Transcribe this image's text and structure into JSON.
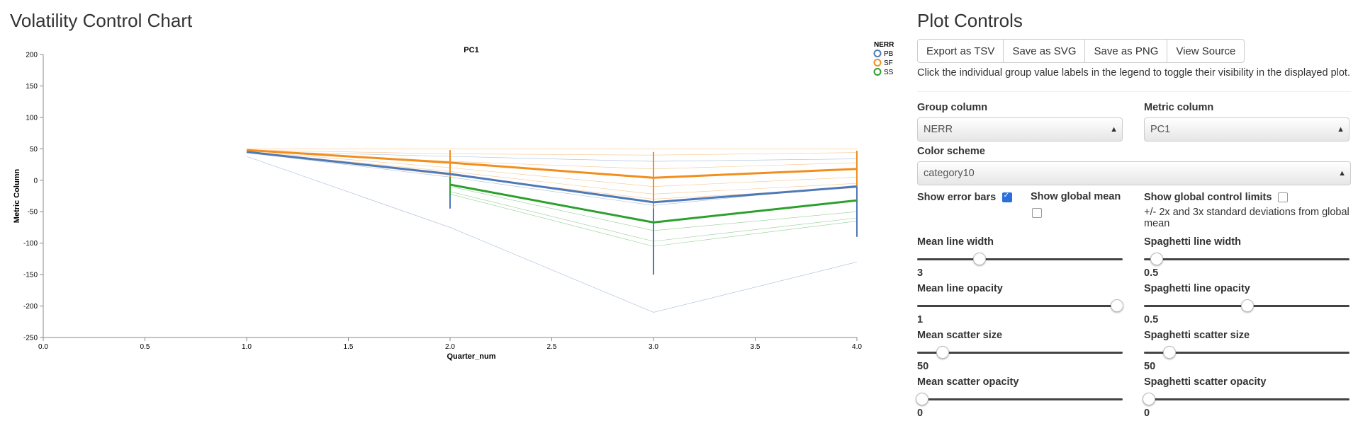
{
  "page_title": "Volatility Control Chart",
  "chart_data": {
    "type": "line",
    "title": "PC1",
    "xlabel": "Quarter_num",
    "ylabel": "Metric Column",
    "xlim": [
      0,
      4
    ],
    "ylim": [
      -250,
      200
    ],
    "x_ticks": [
      "0.0",
      "0.5",
      "1.0",
      "1.5",
      "2.0",
      "2.5",
      "3.0",
      "3.5",
      "4.0"
    ],
    "y_ticks": [
      "200",
      "150",
      "100",
      "50",
      "0",
      "-50",
      "-100",
      "-150",
      "-200",
      "-250"
    ],
    "legend_title": "NERR",
    "legend_position": "top-right",
    "x": [
      1,
      2,
      3,
      4
    ],
    "series": [
      {
        "name": "PB",
        "color": "#4e79b8",
        "mean": [
          45,
          10,
          -35,
          -10
        ],
        "error_low": [
          null,
          -45,
          -150,
          -90
        ],
        "error_high": [
          null,
          45,
          40,
          25
        ],
        "spaghetti": [
          [
            46,
            38,
            30,
            34
          ],
          [
            44,
            5,
            -40,
            -8
          ],
          [
            38,
            -75,
            -210,
            -130
          ]
        ]
      },
      {
        "name": "SF",
        "color": "#f28e1c",
        "mean": [
          48,
          28,
          4,
          18
        ],
        "error_low": [
          null,
          5,
          -45,
          -10
        ],
        "error_high": [
          null,
          48,
          45,
          47
        ],
        "spaghetti": [
          [
            50,
            50,
            50,
            50
          ],
          [
            48,
            42,
            40,
            44
          ],
          [
            47,
            30,
            18,
            28
          ],
          [
            46,
            20,
            -10,
            5
          ],
          [
            45,
            14,
            -22,
            -5
          ],
          [
            44,
            8,
            -30,
            -12
          ]
        ]
      },
      {
        "name": "SS",
        "color": "#2ca02c",
        "mean": [
          null,
          -7,
          -67,
          -32
        ],
        "error_low": [
          null,
          -25,
          null,
          null
        ],
        "error_high": [
          null,
          5,
          null,
          null
        ],
        "spaghetti": [
          [
            null,
            -10,
            -80,
            -50
          ],
          [
            null,
            -18,
            -97,
            -60
          ],
          [
            null,
            -22,
            -105,
            -65
          ]
        ]
      }
    ]
  },
  "controls": {
    "title": "Plot Controls",
    "buttons": [
      "Export as TSV",
      "Save as SVG",
      "Save as PNG",
      "View Source"
    ],
    "help": "Click the individual group value labels in the legend to toggle their visibility in the displayed plot.",
    "group_column_label": "Group column",
    "group_column_value": "NERR",
    "metric_column_label": "Metric column",
    "metric_column_value": "PC1",
    "color_scheme_label": "Color scheme",
    "color_scheme_value": "category10",
    "show_error_bars": "Show error bars",
    "show_global_mean": "Show global mean",
    "show_control_limits": "Show global control limits",
    "control_limits_help": "+/- 2x and 3x standard deviations from global mean",
    "error_bars_checked": true,
    "global_mean_checked": false,
    "control_limits_checked": false,
    "sliders": {
      "mean_line_width": {
        "label": "Mean line width",
        "value": "3",
        "fraction": 0.3
      },
      "spaghetti_line_width": {
        "label": "Spaghetti line width",
        "value": "0.5",
        "fraction": 0.06
      },
      "mean_line_opacity": {
        "label": "Mean line opacity",
        "value": "1",
        "fraction": 0.97
      },
      "spaghetti_line_opacity": {
        "label": "Spaghetti line opacity",
        "value": "0.5",
        "fraction": 0.5
      },
      "mean_scatter_size": {
        "label": "Mean scatter size",
        "value": "50",
        "fraction": 0.12
      },
      "spaghetti_scatter_size": {
        "label": "Spaghetti scatter size",
        "value": "50",
        "fraction": 0.12
      },
      "mean_scatter_opacity": {
        "label": "Mean scatter opacity",
        "value": "0",
        "fraction": 0.02
      },
      "spaghetti_scatter_opacity": {
        "label": "Spaghetti scatter opacity",
        "value": "0",
        "fraction": 0.02
      }
    }
  }
}
